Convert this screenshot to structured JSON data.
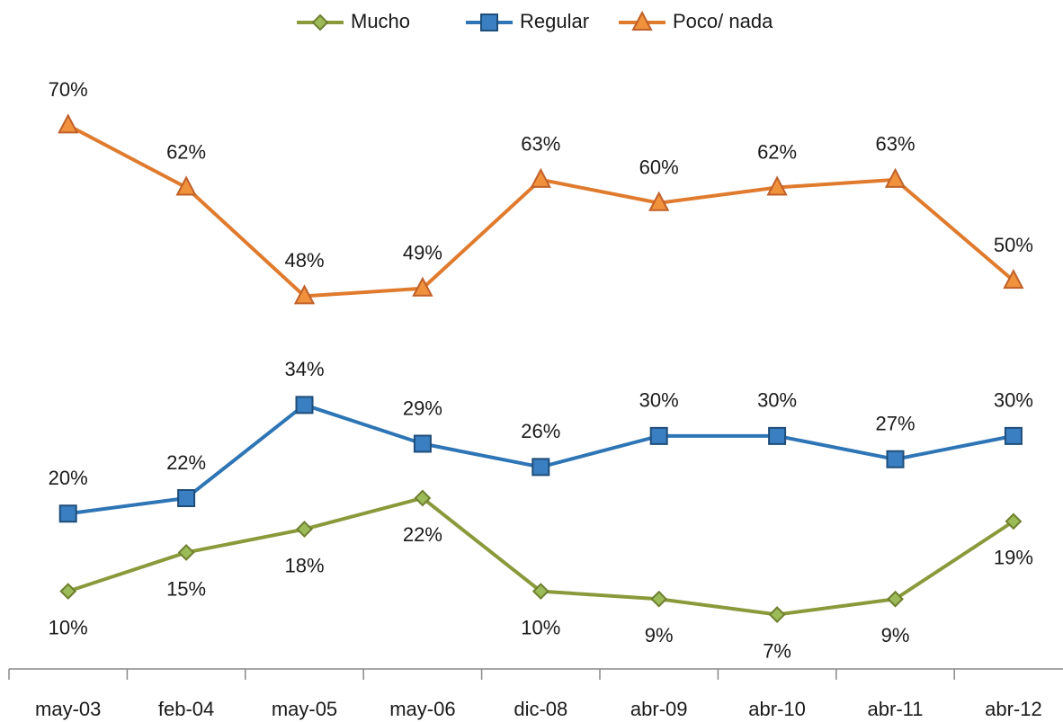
{
  "chart_data": {
    "type": "line",
    "categories": [
      "may-03",
      "feb-04",
      "may-05",
      "may-06",
      "dic-08",
      "abr-09",
      "abr-10",
      "abr-11",
      "abr-12"
    ],
    "series": [
      {
        "name": "Mucho",
        "color": "#8a9a3b",
        "values": [
          10,
          15,
          18,
          22,
          10,
          9,
          7,
          9,
          19
        ],
        "value_labels": [
          "10%",
          "15%",
          "18%",
          "22%",
          "10%",
          "9%",
          "7%",
          "9%",
          "19%"
        ]
      },
      {
        "name": "Regular",
        "color": "#2e75b6",
        "values": [
          20,
          22,
          34,
          29,
          26,
          30,
          30,
          27,
          30
        ],
        "value_labels": [
          "20%",
          "22%",
          "34%",
          "29%",
          "26%",
          "30%",
          "30%",
          "27%",
          "30%"
        ]
      },
      {
        "name": "Poco/ nada",
        "color": "#e07b2e",
        "values": [
          70,
          62,
          48,
          49,
          63,
          60,
          62,
          63,
          50
        ],
        "value_labels": [
          "70%",
          "62%",
          "48%",
          "49%",
          "63%",
          "60%",
          "62%",
          "63%",
          "50%"
        ]
      }
    ],
    "ylim": [
      0,
      80
    ],
    "legend": "top"
  }
}
